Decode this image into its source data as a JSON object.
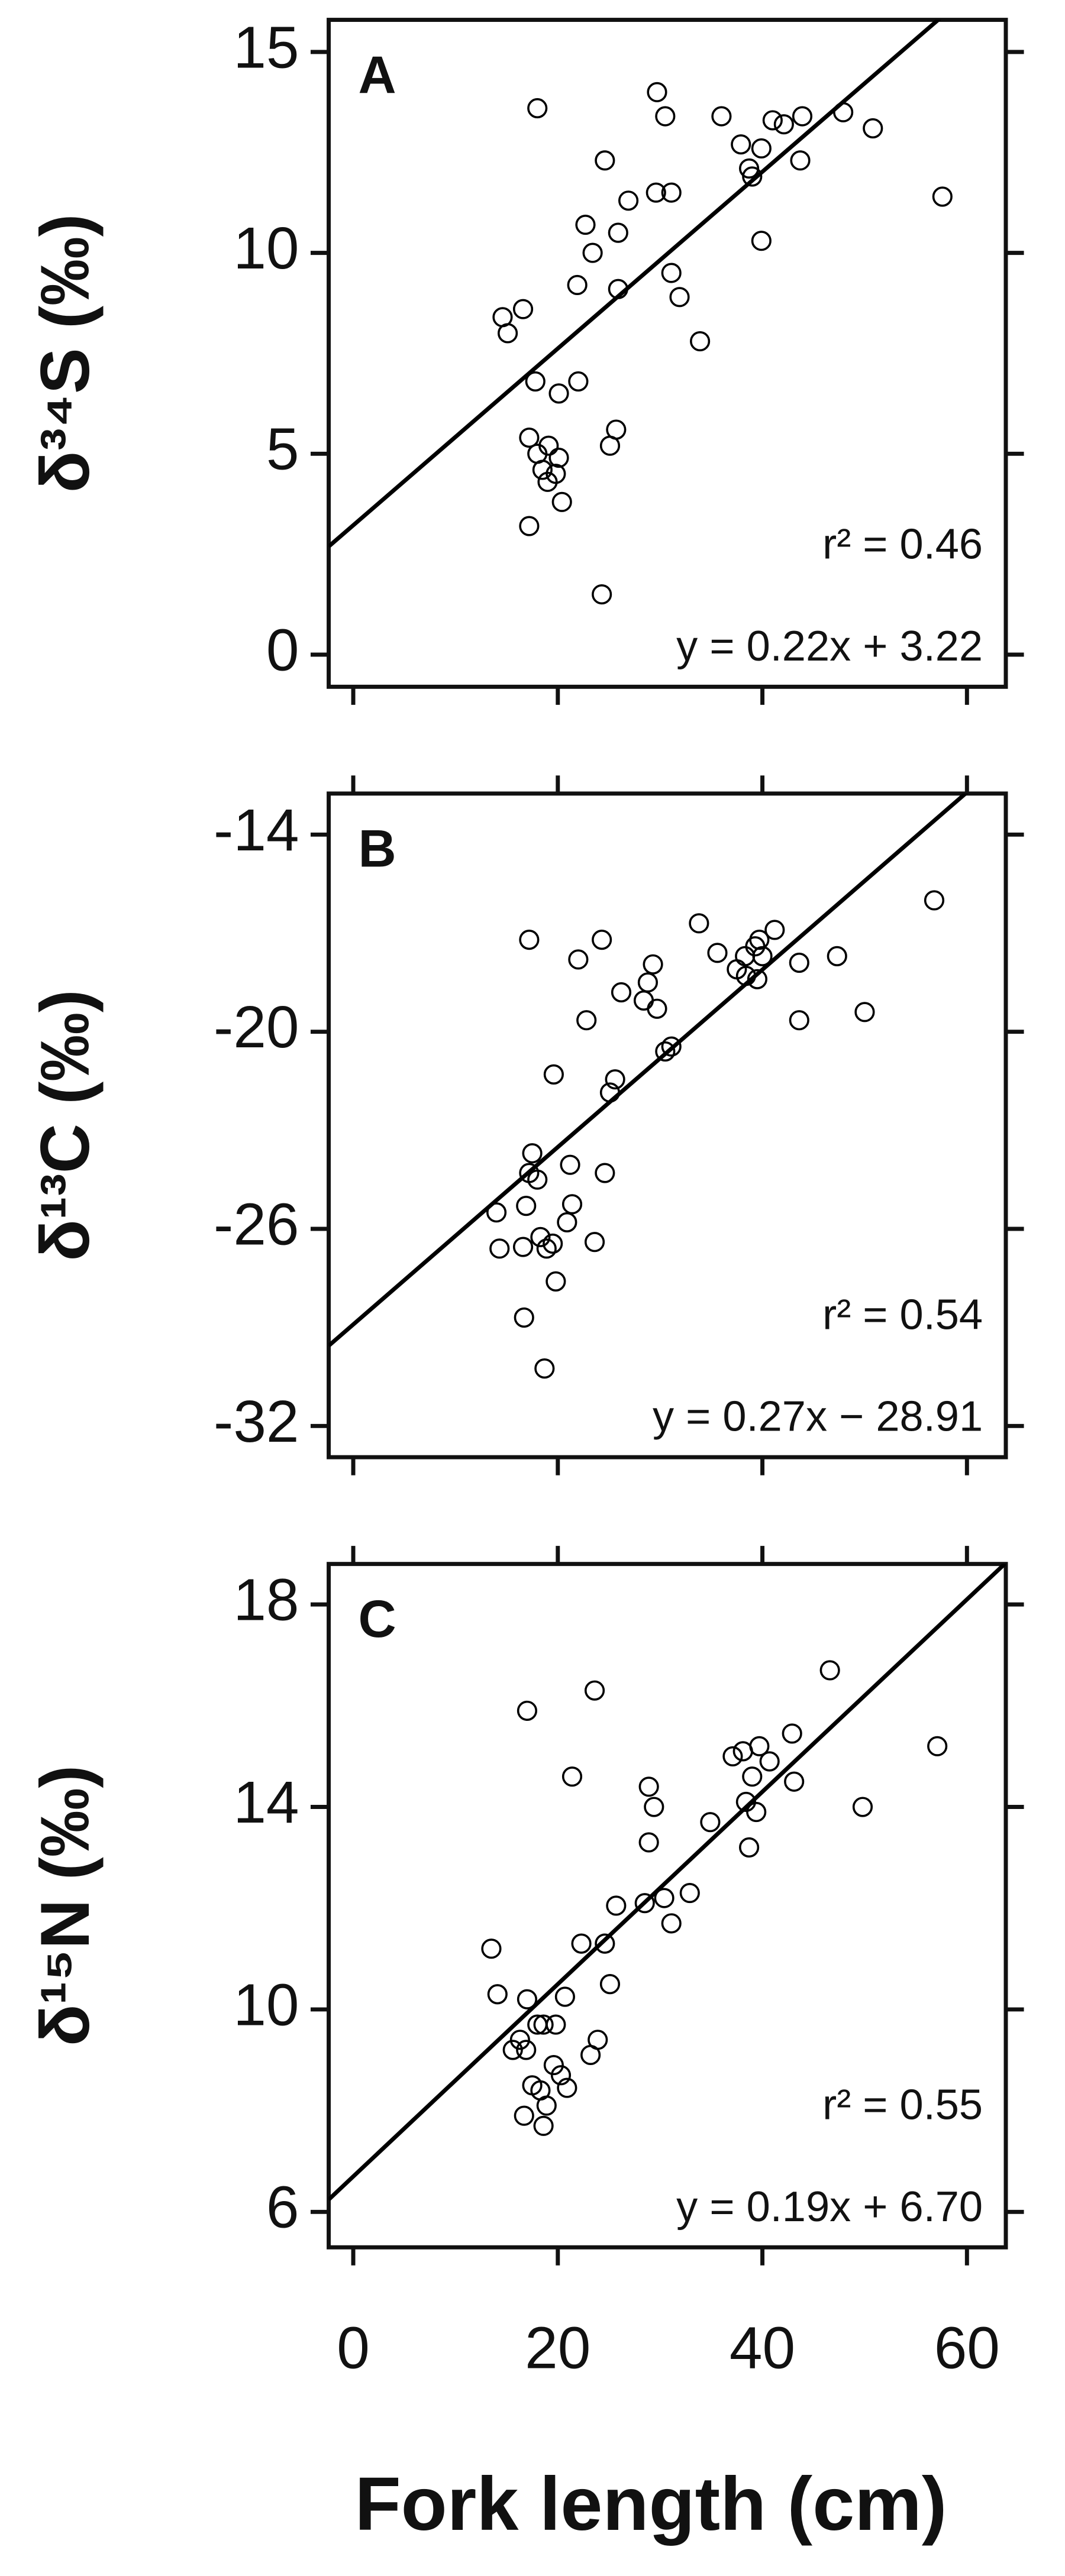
{
  "chart_data": [
    {
      "type": "scatter",
      "title": "A",
      "ylabel": "δ³⁴S (‰)",
      "r2_label": "r² = 0.46",
      "fit_label": "y = 0.22x + 3.22",
      "fit": {
        "slope": 0.22,
        "intercept": 3.22
      },
      "color": "#000000",
      "xlim": [
        -2.4,
        63.8
      ],
      "xticks": [
        0,
        20,
        40,
        60
      ],
      "ylim": [
        -0.8,
        15.8
      ],
      "yticks": [
        0,
        5,
        10,
        15
      ],
      "x": [
        18.0,
        29.7,
        30.5,
        36.0,
        37.9,
        39.9,
        41.0,
        42.1,
        43.9,
        47.9,
        50.8,
        38.7,
        39.0,
        43.7,
        24.6,
        31.1,
        29.6,
        26.9,
        57.6,
        22.7,
        25.9,
        23.4,
        39.9,
        31.1,
        21.9,
        25.9,
        31.9,
        14.6,
        16.6,
        15.1,
        33.9,
        17.8,
        20.1,
        22.0,
        25.7,
        17.2,
        19.1,
        18.0,
        20.1,
        18.5,
        19.8,
        19.0,
        20.4,
        25.1,
        17.2,
        24.3
      ],
      "values": [
        13.6,
        14.0,
        13.4,
        13.4,
        12.7,
        12.6,
        13.3,
        13.2,
        13.4,
        13.5,
        13.1,
        12.1,
        11.9,
        12.3,
        12.3,
        11.5,
        11.5,
        11.3,
        11.4,
        10.7,
        10.5,
        10.0,
        10.3,
        9.5,
        9.2,
        9.1,
        8.9,
        8.4,
        8.6,
        8.0,
        7.8,
        6.8,
        6.5,
        6.8,
        5.6,
        5.4,
        5.2,
        5.0,
        4.9,
        4.6,
        4.5,
        4.3,
        3.8,
        5.2,
        3.2,
        1.5
      ]
    },
    {
      "type": "scatter",
      "title": "B",
      "ylabel": "δ¹³C (‰)",
      "r2_label": "r² = 0.54",
      "fit_label": "y = 0.27x − 28.91",
      "fit": {
        "slope": 0.27,
        "intercept": -28.91
      },
      "color": "#000000",
      "xlim": [
        -2.4,
        63.8
      ],
      "xticks": [
        0,
        20,
        40,
        60
      ],
      "ylim": [
        -32.95,
        -12.75
      ],
      "yticks": [
        -32,
        -26,
        -20,
        -14
      ],
      "x": [
        17.2,
        22.0,
        24.3,
        33.8,
        35.6,
        37.5,
        38.3,
        39.3,
        39.7,
        40.0,
        39.5,
        41.2,
        38.4,
        43.6,
        47.3,
        56.8,
        29.3,
        28.8,
        26.2,
        28.4,
        29.7,
        22.8,
        43.6,
        50.0,
        31.1,
        30.5,
        19.6,
        25.6,
        25.1,
        17.5,
        17.2,
        21.2,
        24.6,
        18.0,
        14.0,
        16.9,
        21.4,
        20.9,
        14.3,
        16.6,
        18.3,
        18.9,
        19.5,
        23.6,
        19.8,
        16.7,
        18.7
      ],
      "values": [
        -17.2,
        -17.8,
        -17.2,
        -16.7,
        -17.6,
        -18.1,
        -17.7,
        -17.4,
        -17.2,
        -17.7,
        -18.4,
        -16.9,
        -18.3,
        -17.9,
        -17.7,
        -16.0,
        -17.95,
        -18.5,
        -18.8,
        -19.05,
        -19.3,
        -19.65,
        -19.65,
        -19.4,
        -20.45,
        -20.6,
        -21.3,
        -21.45,
        -21.85,
        -23.7,
        -24.3,
        -24.05,
        -24.3,
        -24.5,
        -25.5,
        -25.3,
        -25.25,
        -25.8,
        -26.6,
        -26.55,
        -26.25,
        -26.6,
        -26.45,
        -26.4,
        -27.6,
        -28.7,
        -30.25
      ]
    },
    {
      "type": "scatter",
      "title": "C",
      "ylabel": "δ¹⁵N (‰)",
      "r2_label": "r² = 0.55",
      "fit_label": "y = 0.19x + 6.70",
      "fit": {
        "slope": 0.19,
        "intercept": 6.7
      },
      "color": "#000000",
      "xlabel": "Fork length (cm)",
      "xlim": [
        -2.4,
        63.8
      ],
      "xticks": [
        0,
        20,
        40,
        60
      ],
      "ylim": [
        5.3,
        18.8
      ],
      "yticks": [
        6,
        10,
        14,
        18
      ],
      "x": [
        46.6,
        23.6,
        17.0,
        57.1,
        42.9,
        39.7,
        37.1,
        38.1,
        40.7,
        21.4,
        39.0,
        43.1,
        28.9,
        38.4,
        39.4,
        29.4,
        34.9,
        49.8,
        28.9,
        38.7,
        32.9,
        30.4,
        28.5,
        25.7,
        31.1,
        13.5,
        22.3,
        24.6,
        14.1,
        25.1,
        17.0,
        20.7,
        18.6,
        18.0,
        19.8,
        16.3,
        23.9,
        15.6,
        16.9,
        23.2,
        19.6,
        17.5,
        20.3,
        20.9,
        18.3,
        18.9,
        16.7,
        18.6
      ],
      "values": [
        16.7,
        16.3,
        15.9,
        15.2,
        15.45,
        15.2,
        15.0,
        15.1,
        14.9,
        14.6,
        14.6,
        14.5,
        14.4,
        14.1,
        13.9,
        14.0,
        13.7,
        14.0,
        13.3,
        13.2,
        12.3,
        12.2,
        12.1,
        12.05,
        11.7,
        11.2,
        11.3,
        11.3,
        10.3,
        10.5,
        10.2,
        10.25,
        9.7,
        9.7,
        9.7,
        9.4,
        9.4,
        9.2,
        9.2,
        9.1,
        8.9,
        8.5,
        8.7,
        8.45,
        8.4,
        8.1,
        7.9,
        7.7
      ]
    }
  ]
}
